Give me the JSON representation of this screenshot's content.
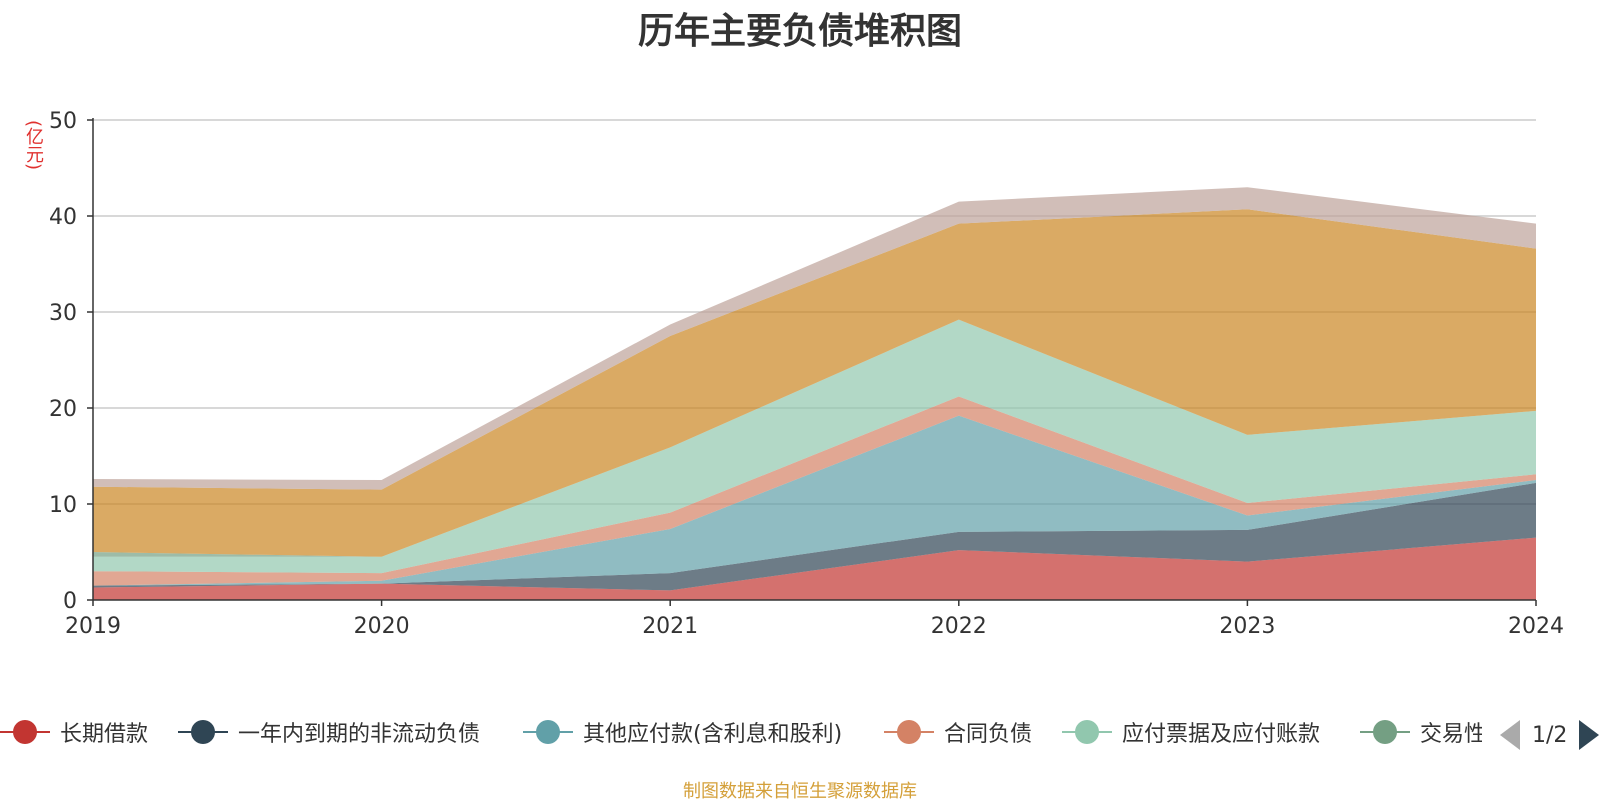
{
  "title": "历年主要负债堆积图",
  "unit_label": "(亿元)",
  "source_note": "制图数据来自恒生聚源数据库",
  "pager": {
    "label": "1/2"
  },
  "chart_data": {
    "type": "area",
    "stacked": true,
    "title": "历年主要负债堆积图",
    "ylabel": "(亿元)",
    "x": [
      "2019",
      "2020",
      "2021",
      "2022",
      "2023",
      "2024"
    ],
    "ylim": [
      0,
      50
    ],
    "yticks": [
      0,
      10,
      20,
      30,
      40,
      50
    ],
    "grid": true,
    "legend_position": "bottom",
    "series": [
      {
        "name": "长期借款",
        "color": "#c23531",
        "values": [
          1.3,
          1.7,
          1.0,
          5.2,
          4.0,
          6.5
        ]
      },
      {
        "name": "一年内到期的非流动负债",
        "color": "#2f4554",
        "values": [
          0.2,
          0.0,
          1.8,
          1.9,
          3.3,
          5.7
        ]
      },
      {
        "name": "其他应付款(含利息和股利)",
        "color": "#61a0a8",
        "values": [
          0.0,
          0.3,
          4.6,
          12.1,
          1.5,
          0.3
        ]
      },
      {
        "name": "合同负债",
        "color": "#d48265",
        "values": [
          1.5,
          0.8,
          1.7,
          2.0,
          1.3,
          0.6
        ]
      },
      {
        "name": "应付票据及应付账款",
        "color": "#91c7ae",
        "values": [
          1.5,
          1.7,
          6.8,
          8.0,
          7.1,
          6.6
        ]
      },
      {
        "name": "交易性",
        "color": "#749f83",
        "values": [
          0.5,
          0.0,
          0.0,
          0.0,
          0.0,
          0.0
        ]
      },
      {
        "name": "",
        "color": "#ca8622",
        "values": [
          6.8,
          7.0,
          11.6,
          10.0,
          23.5,
          16.9
        ]
      },
      {
        "name": "",
        "color": "#bda29a",
        "values": [
          0.8,
          1.0,
          1.2,
          2.3,
          2.3,
          2.6
        ]
      }
    ]
  },
  "legend": [
    {
      "label": "长期借款",
      "color": "#c23531"
    },
    {
      "label": "一年内到期的非流动负债",
      "color": "#2f4554"
    },
    {
      "label": "其他应付款(含利息和股利)",
      "color": "#61a0a8"
    },
    {
      "label": "合同负债",
      "color": "#d48265"
    },
    {
      "label": "应付票据及应付账款",
      "color": "#91c7ae"
    },
    {
      "label": "交易性",
      "color": "#749f83"
    }
  ]
}
